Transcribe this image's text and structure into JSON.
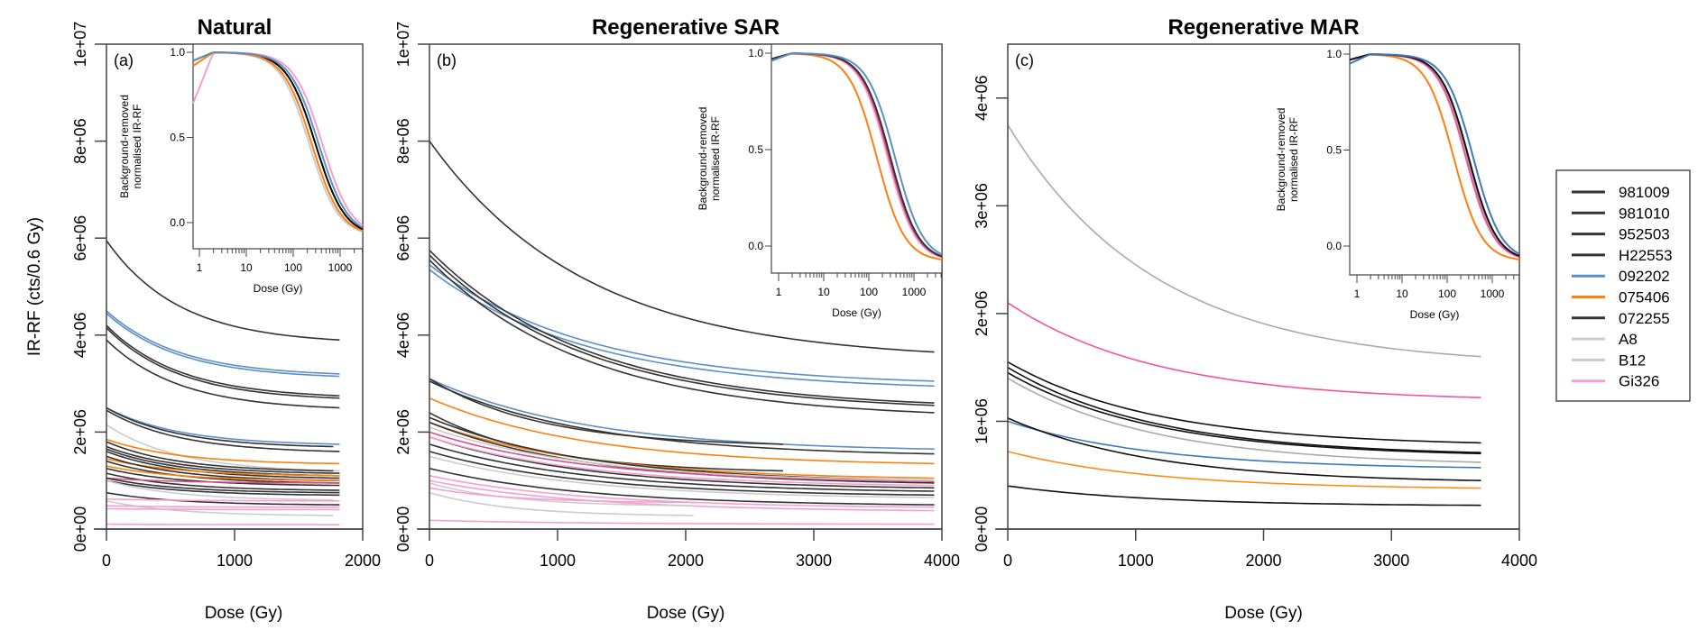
{
  "chart_data": {
    "type": "line",
    "ylabel": "IR-RF (cts/0.6 Gy)",
    "legend": {
      "placement": "right",
      "entries": [
        {
          "label": "981009",
          "color": "#333333"
        },
        {
          "label": "981010",
          "color": "#333333"
        },
        {
          "label": "952503",
          "color": "#333333"
        },
        {
          "label": "H22553",
          "color": "#333333"
        },
        {
          "label": "092202",
          "color": "#5b8fc6"
        },
        {
          "label": "075406",
          "color": "#ff7f0e"
        },
        {
          "label": "072255",
          "color": "#333333"
        },
        {
          "label": "A8",
          "color": "#cccccc"
        },
        {
          "label": "B12",
          "color": "#cccccc"
        },
        {
          "label": "Gi326",
          "color": "#f5a0cf"
        }
      ]
    },
    "inset_common": {
      "ylabel_line1": "Background-removed",
      "ylabel_line2": "normalised IR-RF",
      "xlabel": "Dose (Gy)",
      "xscale": "log",
      "xticks": [
        "1",
        "10",
        "100",
        "1000"
      ],
      "yticks": [
        "0.0",
        "0.5",
        "1.0"
      ]
    },
    "panels": [
      {
        "id": "a",
        "title": "Natural",
        "tag": "(a)",
        "xlabel": "Dose (Gy)",
        "xlim": [
          0,
          2000
        ],
        "ylim": [
          0,
          10000000
        ],
        "xticks": [
          "0",
          "1000",
          "2000"
        ],
        "yticks": [
          "0e+00",
          "2e+06",
          "4e+06",
          "6e+06",
          "8e+06",
          "1e+07"
        ],
        "series": [
          {
            "color": "#333333",
            "start": 5950000,
            "end": 3900000,
            "xmax": 1820
          },
          {
            "color": "#5b8fc6",
            "start": 4500000,
            "end": 3200000,
            "xmax": 1820
          },
          {
            "color": "#5b8fc6",
            "start": 4450000,
            "end": 3150000,
            "xmax": 1820
          },
          {
            "color": "#333333",
            "start": 4200000,
            "end": 2750000,
            "xmax": 1820
          },
          {
            "color": "#333333",
            "start": 4150000,
            "end": 2700000,
            "xmax": 1820
          },
          {
            "color": "#333333",
            "start": 3900000,
            "end": 2500000,
            "xmax": 1820
          },
          {
            "color": "#5b8fc6",
            "start": 2500000,
            "end": 1750000,
            "xmax": 1820
          },
          {
            "color": "#333333",
            "start": 2500000,
            "end": 1700000,
            "xmax": 1770
          },
          {
            "color": "#333333",
            "start": 2450000,
            "end": 1600000,
            "xmax": 1820
          },
          {
            "color": "#cccccc",
            "start": 2150000,
            "end": 1200000,
            "xmax": 1820
          },
          {
            "color": "#ff7f0e",
            "start": 1850000,
            "end": 1350000,
            "xmax": 1820
          },
          {
            "color": "#333333",
            "start": 1800000,
            "end": 1200000,
            "xmax": 1770
          },
          {
            "color": "#333333",
            "start": 1700000,
            "end": 1150000,
            "xmax": 1820
          },
          {
            "color": "#333333",
            "start": 1650000,
            "end": 1100000,
            "xmax": 1820
          },
          {
            "color": "#333333",
            "start": 1600000,
            "end": 1050000,
            "xmax": 1820
          },
          {
            "color": "#ff7f0e",
            "start": 1450000,
            "end": 1100000,
            "xmax": 1820
          },
          {
            "color": "#333333",
            "start": 1500000,
            "end": 1000000,
            "xmax": 1820
          },
          {
            "color": "#333333",
            "start": 1400000,
            "end": 950000,
            "xmax": 1820
          },
          {
            "color": "#ff7f0e",
            "start": 1300000,
            "end": 1000000,
            "xmax": 1820
          },
          {
            "color": "#333333",
            "start": 1250000,
            "end": 900000,
            "xmax": 1820
          },
          {
            "color": "#333333",
            "start": 1150000,
            "end": 800000,
            "xmax": 1820
          },
          {
            "color": "#d94f8a",
            "start": 1050000,
            "end": 950000,
            "xmax": 1820
          },
          {
            "color": "#333333",
            "start": 1050000,
            "end": 750000,
            "xmax": 1820
          },
          {
            "color": "#333333",
            "start": 1000000,
            "end": 700000,
            "xmax": 1820
          },
          {
            "color": "#cccccc",
            "start": 1000000,
            "end": 600000,
            "xmax": 1770
          },
          {
            "color": "#333333",
            "start": 750000,
            "end": 500000,
            "xmax": 1820
          },
          {
            "color": "#f5a0cf",
            "start": 620000,
            "end": 580000,
            "xmax": 1820
          },
          {
            "color": "#cccccc",
            "start": 580000,
            "end": 280000,
            "xmax": 1770
          },
          {
            "color": "#f5a0cf",
            "start": 480000,
            "end": 450000,
            "xmax": 1820
          },
          {
            "color": "#f5a0cf",
            "start": 420000,
            "end": 400000,
            "xmax": 1820
          },
          {
            "color": "#f5a0cf",
            "start": 100000,
            "end": 90000,
            "xmax": 1820
          }
        ],
        "inset": {
          "series": [
            {
              "color": "#f5a0cf",
              "d50": 420,
              "start": 0.7
            },
            {
              "color": "#cccccc",
              "d50": 220,
              "start": 0.95
            },
            {
              "color": "#000000",
              "d50": 300,
              "start": 0.95
            },
            {
              "color": "#ff7f0e",
              "d50": 250,
              "start": 0.92
            },
            {
              "color": "#5b8fc6",
              "d50": 350,
              "start": 0.95
            }
          ]
        }
      },
      {
        "id": "b",
        "title": "Regenerative SAR",
        "tag": "(b)",
        "xlabel": "Dose (Gy)",
        "xlim": [
          0,
          4000
        ],
        "ylim": [
          0,
          10000000
        ],
        "xticks": [
          "0",
          "1000",
          "2000",
          "3000",
          "4000"
        ],
        "yticks": [
          "0e+00",
          "2e+06",
          "4e+06",
          "6e+06",
          "8e+06",
          "1e+07"
        ],
        "series": [
          {
            "color": "#333333",
            "start": 8000000,
            "end": 3650000,
            "xmax": 3940
          },
          {
            "color": "#5b8fc6",
            "start": 5450000,
            "end": 3050000,
            "xmax": 3940
          },
          {
            "color": "#5b8fc6",
            "start": 5350000,
            "end": 2950000,
            "xmax": 3940
          },
          {
            "color": "#333333",
            "start": 5750000,
            "end": 2600000,
            "xmax": 3940
          },
          {
            "color": "#333333",
            "start": 5650000,
            "end": 2550000,
            "xmax": 3940
          },
          {
            "color": "#333333",
            "start": 5550000,
            "end": 2400000,
            "xmax": 3940
          },
          {
            "color": "#5b8fc6",
            "start": 3100000,
            "end": 1650000,
            "xmax": 3940
          },
          {
            "color": "#333333",
            "start": 3100000,
            "end": 1750000,
            "xmax": 2760
          },
          {
            "color": "#333333",
            "start": 3050000,
            "end": 1550000,
            "xmax": 3940
          },
          {
            "color": "#ff7f0e",
            "start": 2700000,
            "end": 1350000,
            "xmax": 3940
          },
          {
            "color": "#333333",
            "start": 2400000,
            "end": 1200000,
            "xmax": 2760
          },
          {
            "color": "#ff7f0e",
            "start": 2200000,
            "end": 1050000,
            "xmax": 3940
          },
          {
            "color": "#333333",
            "start": 2300000,
            "end": 1000000,
            "xmax": 3940
          },
          {
            "color": "#333333",
            "start": 2200000,
            "end": 950000,
            "xmax": 3940
          },
          {
            "color": "#d94f8a",
            "start": 2000000,
            "end": 980000,
            "xmax": 3940
          },
          {
            "color": "#cccccc",
            "start": 2100000,
            "end": 1000000,
            "xmax": 3940
          },
          {
            "color": "#333333",
            "start": 1900000,
            "end": 850000,
            "xmax": 3940
          },
          {
            "color": "#333333",
            "start": 1750000,
            "end": 780000,
            "xmax": 3940
          },
          {
            "color": "#333333",
            "start": 1600000,
            "end": 700000,
            "xmax": 3940
          },
          {
            "color": "#f5a0cf",
            "start": 1900000,
            "end": 900000,
            "xmax": 3940
          },
          {
            "color": "#cccccc",
            "start": 1500000,
            "end": 650000,
            "xmax": 3940
          },
          {
            "color": "#333333",
            "start": 1250000,
            "end": 500000,
            "xmax": 3940
          },
          {
            "color": "#f5a0cf",
            "start": 1100000,
            "end": 450000,
            "xmax": 3940
          },
          {
            "color": "#f5a0cf",
            "start": 1000000,
            "end": 380000,
            "xmax": 3940
          },
          {
            "color": "#cccccc",
            "start": 950000,
            "end": 480000,
            "xmax": 2060
          },
          {
            "color": "#f5a0cf",
            "start": 850000,
            "end": 550000,
            "xmax": 2060
          },
          {
            "color": "#cccccc",
            "start": 750000,
            "end": 280000,
            "xmax": 2060
          },
          {
            "color": "#f5a0cf",
            "start": 180000,
            "end": 100000,
            "xmax": 3940
          }
        ],
        "inset": {
          "series": [
            {
              "color": "#ff7f0e",
              "d50": 150,
              "start": 0.97
            },
            {
              "color": "#f5a0cf",
              "d50": 260,
              "start": 0.97
            },
            {
              "color": "#d94f8a",
              "d50": 280,
              "start": 0.97
            },
            {
              "color": "#333333",
              "d50": 300,
              "start": 0.97
            },
            {
              "color": "#5b8fc6",
              "d50": 380,
              "start": 0.96
            }
          ]
        }
      },
      {
        "id": "c",
        "title": "Regenerative MAR",
        "tag": "(c)",
        "xlabel": "Dose (Gy)",
        "xlim": [
          0,
          4000
        ],
        "ylim": [
          0,
          4500000
        ],
        "xticks": [
          "0",
          "1000",
          "2000",
          "3000",
          "4000"
        ],
        "yticks": [
          "0e+00",
          "1e+06",
          "2e+06",
          "3e+06",
          "4e+06"
        ],
        "series": [
          {
            "color": "#aaaaaa",
            "start": 3750000,
            "end": 1600000,
            "xmax": 3700
          },
          {
            "color": "#f2559e",
            "start": 2100000,
            "end": 1220000,
            "xmax": 3700
          },
          {
            "color": "#111111",
            "start": 1550000,
            "end": 800000,
            "xmax": 3700
          },
          {
            "color": "#111111",
            "start": 1500000,
            "end": 710000,
            "xmax": 3700
          },
          {
            "color": "#111111",
            "start": 1450000,
            "end": 700000,
            "xmax": 3700
          },
          {
            "color": "#aaaaaa",
            "start": 1400000,
            "end": 620000,
            "xmax": 3700
          },
          {
            "color": "#3d7ab8",
            "start": 1000000,
            "end": 570000,
            "xmax": 3700
          },
          {
            "color": "#111111",
            "start": 1030000,
            "end": 450000,
            "xmax": 3700
          },
          {
            "color": "#ff8c1a",
            "start": 720000,
            "end": 380000,
            "xmax": 3700
          },
          {
            "color": "#111111",
            "start": 400000,
            "end": 220000,
            "xmax": 3700
          }
        ],
        "inset": {
          "series": [
            {
              "color": "#ff7f0e",
              "d50": 140,
              "start": 0.97
            },
            {
              "color": "#aaaaaa",
              "d50": 280,
              "start": 0.97
            },
            {
              "color": "#f2559e",
              "d50": 260,
              "start": 0.97
            },
            {
              "color": "#111111",
              "d50": 300,
              "start": 0.97
            },
            {
              "color": "#3d7ab8",
              "d50": 380,
              "start": 0.95
            }
          ]
        }
      }
    ]
  }
}
